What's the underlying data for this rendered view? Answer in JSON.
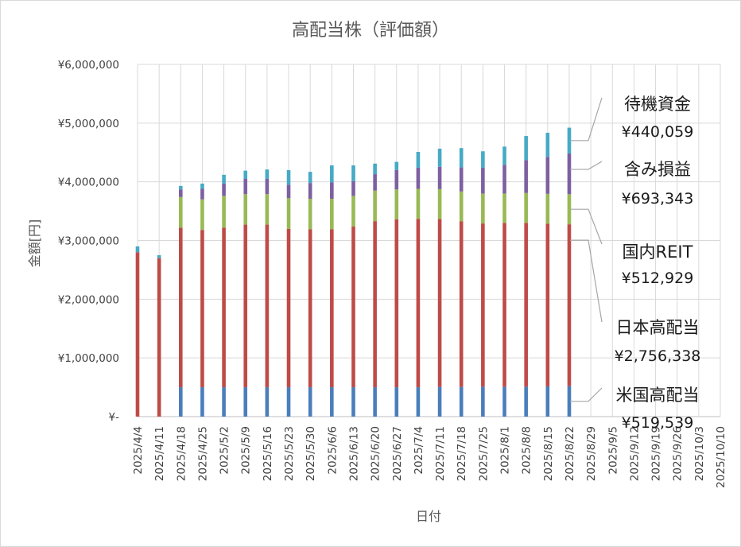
{
  "chart_data": {
    "type": "bar",
    "stacked": true,
    "title": "高配当株（評価額）",
    "xlabel": "日付",
    "ylabel": "金額[円]",
    "ylim": [
      0,
      6000000
    ],
    "y_ticks": [
      0,
      1000000,
      2000000,
      3000000,
      4000000,
      5000000,
      6000000
    ],
    "y_tick_labels": [
      "¥-",
      "¥1,000,000",
      "¥2,000,000",
      "¥3,000,000",
      "¥4,000,000",
      "¥5,000,000",
      "¥6,000,000"
    ],
    "grid": "horizontal",
    "legend": "none",
    "categories": [
      "2025/4/4",
      "2025/4/11",
      "2025/4/18",
      "2025/4/25",
      "2025/5/2",
      "2025/5/9",
      "2025/5/16",
      "2025/5/23",
      "2025/5/30",
      "2025/6/6",
      "2025/6/13",
      "2025/6/20",
      "2025/6/27",
      "2025/7/4",
      "2025/7/11",
      "2025/7/18",
      "2025/7/25",
      "2025/8/1",
      "2025/8/8",
      "2025/8/15",
      "2025/8/22",
      "2025/8/29",
      "2025/9/5",
      "2025/9/12",
      "2025/9/19",
      "2025/9/26",
      "2025/10/3",
      "2025/10/10"
    ],
    "series": [
      {
        "name": "米国高配当",
        "color": "#4a7ebb",
        "values": [
          0,
          0,
          500000,
          500000,
          500000,
          500000,
          500000,
          500000,
          500000,
          500000,
          500000,
          500000,
          500000,
          500000,
          505000,
          505000,
          510000,
          510000,
          510000,
          515000,
          519539,
          null,
          null,
          null,
          null,
          null,
          null,
          null
        ]
      },
      {
        "name": "日本高配当",
        "color": "#be4b48",
        "values": [
          2800000,
          2700000,
          2720000,
          2680000,
          2720000,
          2770000,
          2770000,
          2700000,
          2690000,
          2690000,
          2740000,
          2830000,
          2860000,
          2870000,
          2860000,
          2820000,
          2780000,
          2790000,
          2790000,
          2770000,
          2756338,
          null,
          null,
          null,
          null,
          null,
          null,
          null
        ]
      },
      {
        "name": "国内REIT",
        "color": "#98b954",
        "values": [
          0,
          0,
          520000,
          520000,
          540000,
          520000,
          520000,
          520000,
          520000,
          520000,
          520000,
          520000,
          510000,
          510000,
          510000,
          510000,
          510000,
          500000,
          510000,
          510000,
          512929,
          null,
          null,
          null,
          null,
          null,
          null,
          null
        ]
      },
      {
        "name": "含み損益",
        "color": "#7d60a0",
        "values": [
          0,
          0,
          130000,
          180000,
          210000,
          260000,
          260000,
          230000,
          270000,
          280000,
          250000,
          280000,
          330000,
          360000,
          380000,
          410000,
          440000,
          490000,
          560000,
          630000,
          693343,
          null,
          null,
          null,
          null,
          null,
          null,
          null
        ]
      },
      {
        "name": "待機資金",
        "color": "#46aac5",
        "values": [
          100000,
          50000,
          60000,
          90000,
          150000,
          140000,
          160000,
          250000,
          190000,
          290000,
          270000,
          180000,
          140000,
          270000,
          310000,
          330000,
          280000,
          310000,
          410000,
          410000,
          440059,
          null,
          null,
          null,
          null,
          null,
          null,
          null
        ]
      }
    ],
    "annotations": [
      {
        "name": "待機資金",
        "value": "¥440,059"
      },
      {
        "name": "含み損益",
        "value": "¥693,343"
      },
      {
        "name": "国内REIT",
        "value": "¥512,929"
      },
      {
        "name": "日本高配当",
        "value": "¥2,756,338"
      },
      {
        "name": "米国高配当",
        "value": "¥519,539"
      }
    ]
  }
}
